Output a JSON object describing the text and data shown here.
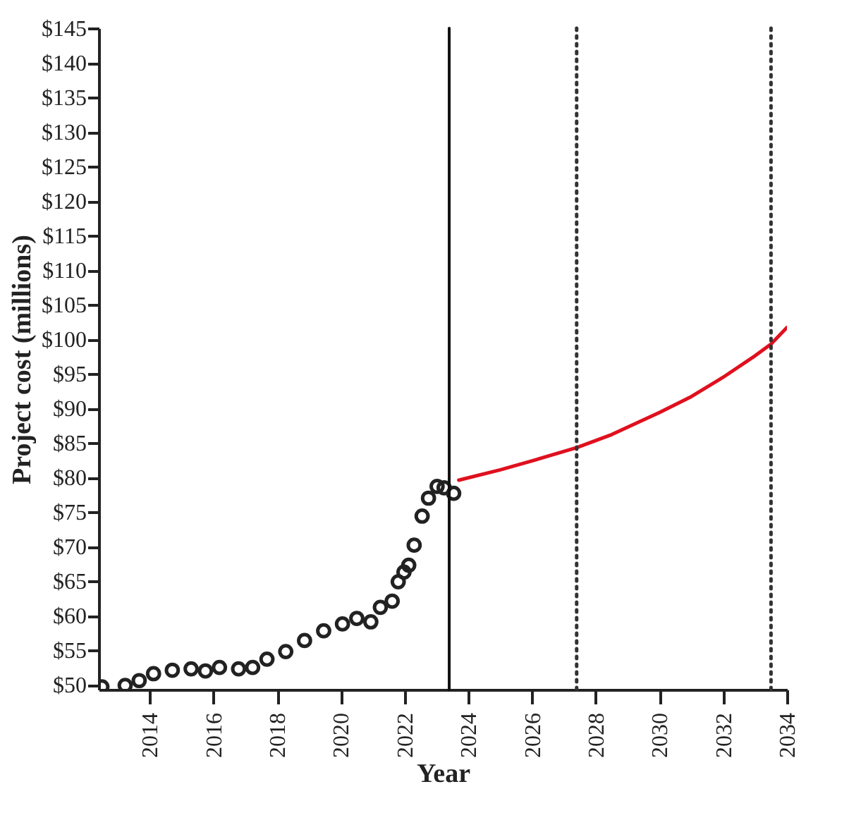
{
  "chart_data": {
    "type": "scatter",
    "xlabel": "Year",
    "ylabel": "Project cost (millions)",
    "xlim": [
      2012.4,
      2034
    ],
    "ylim": [
      49.3,
      145
    ],
    "xticks": [
      2014,
      2016,
      2018,
      2020,
      2022,
      2024,
      2026,
      2028,
      2030,
      2032,
      2034
    ],
    "yticks": [
      {
        "value": 50,
        "label": "$50"
      },
      {
        "value": 55,
        "label": "$55"
      },
      {
        "value": 60,
        "label": "$60"
      },
      {
        "value": 65,
        "label": "$65"
      },
      {
        "value": 70,
        "label": "$70"
      },
      {
        "value": 75,
        "label": "$75"
      },
      {
        "value": 80,
        "label": "$80"
      },
      {
        "value": 85,
        "label": "$85"
      },
      {
        "value": 90,
        "label": "$90"
      },
      {
        "value": 95,
        "label": "$95"
      },
      {
        "value": 100,
        "label": "$100"
      },
      {
        "value": 105,
        "label": "$105"
      },
      {
        "value": 110,
        "label": "$110"
      },
      {
        "value": 115,
        "label": "$115"
      },
      {
        "value": 120,
        "label": "$120"
      },
      {
        "value": 125,
        "label": "$125"
      },
      {
        "value": 130,
        "label": "$130"
      },
      {
        "value": 135,
        "label": "$135"
      },
      {
        "value": 140,
        "label": "$140"
      },
      {
        "value": 145,
        "label": "$145"
      }
    ],
    "grid": false,
    "marker": "circle",
    "series": [
      {
        "color": "#222222",
        "x": [
          2012.5,
          2013.23,
          2013.67,
          2014.12,
          2014.71,
          2015.3,
          2015.75,
          2016.19,
          2016.79,
          2017.23,
          2017.68,
          2018.27,
          2018.86,
          2019.46,
          2020.05,
          2020.5,
          2020.94,
          2021.24,
          2021.61,
          2021.8,
          2021.98,
          2022.13,
          2022.3,
          2022.55,
          2022.75,
          2023.02,
          2023.24,
          2023.54
        ],
        "values": [
          49.7,
          49.9,
          50.6,
          51.6,
          52.1,
          52.3,
          52.0,
          52.5,
          52.3,
          52.5,
          53.7,
          54.8,
          56.4,
          57.8,
          58.8,
          59.6,
          59.1,
          61.2,
          62.1,
          64.9,
          66.3,
          67.3,
          70.2,
          74.4,
          77.0,
          78.7,
          78.5,
          77.7
        ]
      },
      {
        "type": "line",
        "color": "#e0101e",
        "marker": "none",
        "line_style": "solid",
        "x": [
          2023.7,
          2025,
          2026,
          2027.4,
          2028.5,
          2030,
          2031,
          2032,
          2033,
          2033.5,
          2034
        ],
        "values": [
          79.6,
          81.1,
          82.4,
          84.3,
          86.2,
          89.4,
          91.7,
          94.5,
          97.6,
          99.3,
          101.7
        ]
      }
    ],
    "ref_lines": [
      {
        "axis": "x",
        "value": 2023.4,
        "color": "#111111",
        "line_style": "solid"
      },
      {
        "axis": "x",
        "value": 2027.4,
        "color": "#333333",
        "line_style": "dotted"
      },
      {
        "axis": "x",
        "value": 2033.5,
        "color": "#333333",
        "line_style": "dotted"
      }
    ]
  }
}
